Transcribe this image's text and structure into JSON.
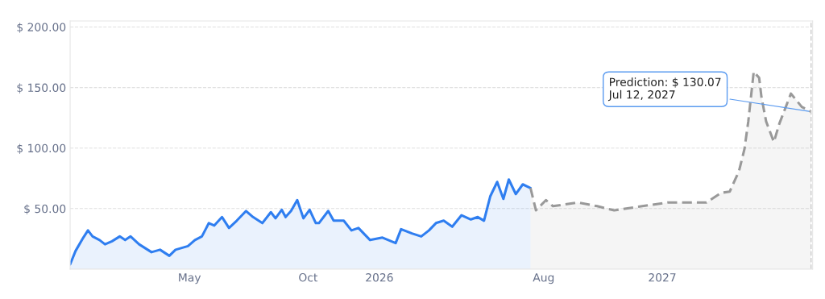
{
  "chart_data": {
    "type": "area",
    "xlim": [
      "2024-11-28",
      "2027-07-14"
    ],
    "xticks": [
      {
        "value": "2025-05-01",
        "label": "May"
      },
      {
        "value": "2025-10-01",
        "label": "Oct"
      },
      {
        "value": "2026-01-01",
        "label": "2026"
      },
      {
        "value": "2026-08-01",
        "label": "Aug"
      },
      {
        "value": "2027-01-01",
        "label": "2027"
      }
    ],
    "ylim": [
      0,
      205
    ],
    "yticks": [
      {
        "value": 50,
        "label": "$ 50.00"
      },
      {
        "value": 100,
        "label": "$ 100.00"
      },
      {
        "value": 150,
        "label": "$ 150.00"
      },
      {
        "value": 200,
        "label": "$ 200.00"
      }
    ],
    "grid": "y",
    "series": [
      {
        "color": "#2f7ef0",
        "line_style": "solid",
        "x": [
          "2024-11-28",
          "2024-12-05",
          "2024-12-15",
          "2024-12-21",
          "2024-12-27",
          "2025-01-05",
          "2025-01-12",
          "2025-01-21",
          "2025-01-31",
          "2025-02-07",
          "2025-02-14",
          "2025-02-25",
          "2025-03-13",
          "2025-03-24",
          "2025-04-05",
          "2025-04-13",
          "2025-04-29",
          "2025-05-08",
          "2025-05-17",
          "2025-05-26",
          "2025-06-02",
          "2025-06-12",
          "2025-06-21",
          "2025-07-01",
          "2025-07-13",
          "2025-07-22",
          "2025-08-03",
          "2025-08-14",
          "2025-08-20",
          "2025-08-28",
          "2025-09-02",
          "2025-09-09",
          "2025-09-17",
          "2025-09-25",
          "2025-10-03",
          "2025-10-11",
          "2025-10-15",
          "2025-10-27",
          "2025-11-03",
          "2025-11-16",
          "2025-11-26",
          "2025-12-05",
          "2025-12-20",
          "2026-01-05",
          "2026-01-22",
          "2026-01-29",
          "2026-02-12",
          "2026-02-24",
          "2026-03-06",
          "2026-03-15",
          "2026-03-25",
          "2026-04-05",
          "2026-04-17",
          "2026-04-29",
          "2026-05-08",
          "2026-05-16",
          "2026-05-24",
          "2026-06-02",
          "2026-06-10",
          "2026-06-17",
          "2026-06-26",
          "2026-07-05",
          "2026-07-15"
        ],
        "values": [
          4,
          15,
          26,
          32,
          27,
          24,
          20.5,
          23,
          27,
          24,
          27,
          20.5,
          14,
          16,
          11,
          16,
          19,
          24,
          27,
          38,
          36,
          43,
          34,
          40,
          48,
          43,
          38,
          47,
          42,
          49,
          43,
          48,
          57,
          42,
          49,
          38,
          38,
          48,
          40,
          40,
          32,
          34,
          24,
          26,
          21.5,
          33,
          29.5,
          27,
          32,
          38,
          40,
          35,
          44.5,
          41,
          43,
          40,
          60,
          72,
          58,
          74,
          62,
          70,
          67
        ]
      },
      {
        "color": "#999999",
        "line_style": "dashed",
        "x": [
          "2026-07-15",
          "2026-07-22",
          "2026-08-04",
          "2026-08-13",
          "2026-09-14",
          "2026-10-09",
          "2026-10-31",
          "2026-12-01",
          "2027-01-08",
          "2027-02-27",
          "2027-03-18",
          "2027-03-29",
          "2027-04-10",
          "2027-04-17",
          "2027-04-22",
          "2027-04-29",
          "2027-05-06",
          "2027-05-09",
          "2027-05-15",
          "2027-05-25",
          "2027-06-01",
          "2027-06-16",
          "2027-06-30",
          "2027-07-12"
        ],
        "values": [
          67,
          48.6,
          57,
          52,
          55,
          52,
          48.5,
          51.5,
          55,
          55,
          63,
          64,
          81,
          99,
          122,
          163,
          158,
          142,
          122,
          105,
          120,
          145,
          134,
          130.07
        ]
      }
    ],
    "ref_lines": [
      {
        "axis": "x",
        "value": "2027-07-12",
        "color": "#cccccc",
        "line_style": "dashed"
      }
    ],
    "annotations": [
      {
        "text": "Prediction: $ 130.07\nJul 12, 2027",
        "x": "2027-07-12",
        "y": 130.07
      }
    ]
  }
}
